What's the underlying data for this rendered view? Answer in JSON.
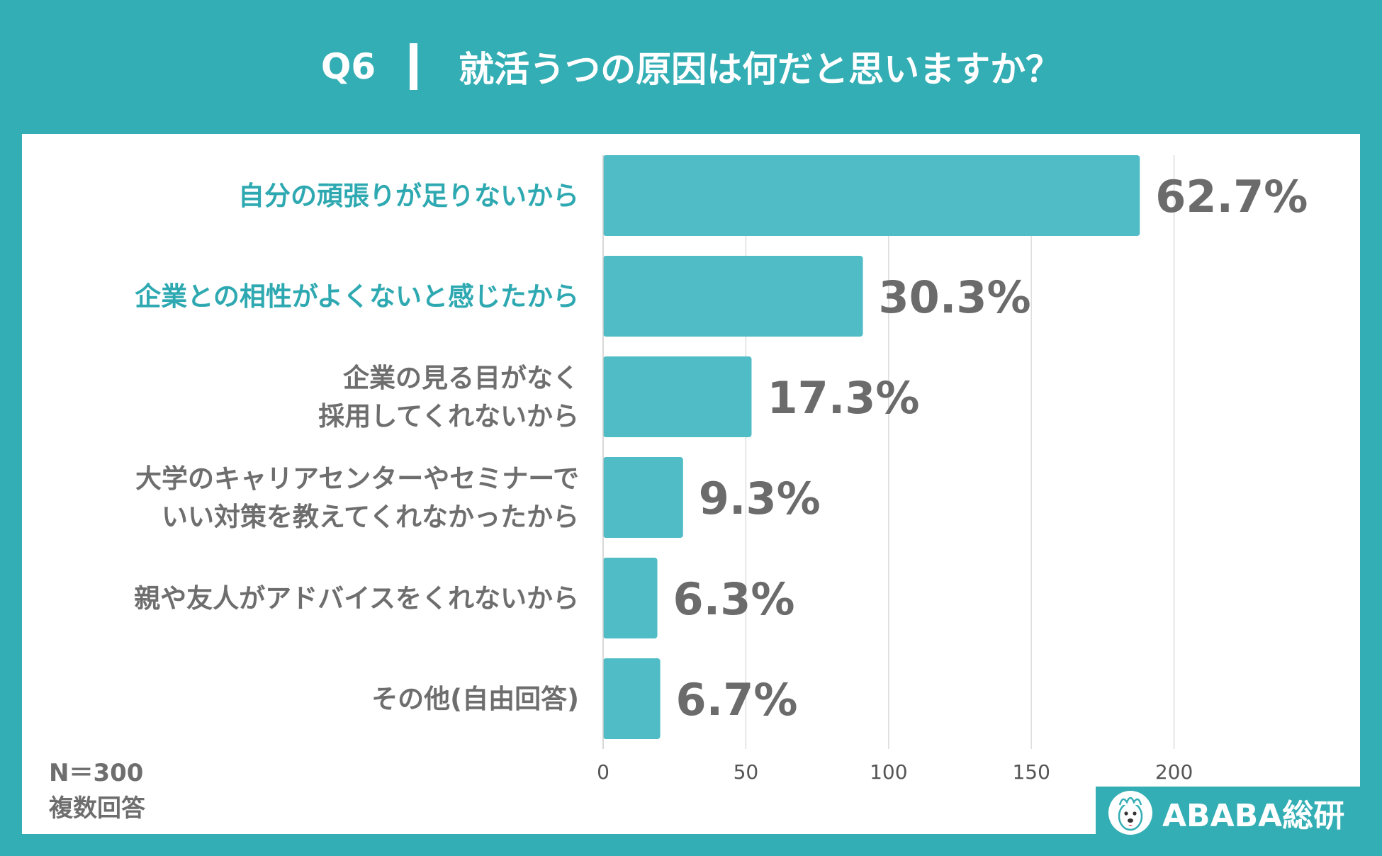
{
  "header": {
    "question_no": "Q6",
    "title": "就活うつの原因は何だと思いますか？"
  },
  "notes": {
    "sample": "N＝300",
    "answer_type": "複数回答"
  },
  "logo": {
    "text": "ABABA総研"
  },
  "colors": {
    "background": "#33aeb4",
    "bar": "#4fbcc6",
    "highlight_label": "#2fa9b1",
    "label": "#6e6e6e",
    "value_label": "#6b6b6b",
    "grid": "#dddddd"
  },
  "chart_data": {
    "type": "bar",
    "orientation": "horizontal",
    "categories": [
      [
        "自分の頑張りが足りないから"
      ],
      [
        "企業との相性がよくないと感じたから"
      ],
      [
        "企業の見る目がなく",
        "採用してくれないから"
      ],
      [
        "大学のキャリアセンターやセミナーで",
        "いい対策を教えてくれなかったから"
      ],
      [
        "親や友人がアドバイスをくれないから"
      ],
      [
        "その他(自由回答)"
      ]
    ],
    "values": [
      188,
      91,
      52,
      28,
      19,
      20
    ],
    "value_labels": [
      "62.7%",
      "30.3%",
      "17.3%",
      "9.3%",
      "6.3%",
      "6.7%"
    ],
    "highlighted": [
      true,
      true,
      false,
      false,
      false,
      false
    ],
    "xlim": [
      0,
      250
    ],
    "xticks": [
      0,
      50,
      100,
      150,
      200
    ],
    "grid": true,
    "legend": "none"
  }
}
